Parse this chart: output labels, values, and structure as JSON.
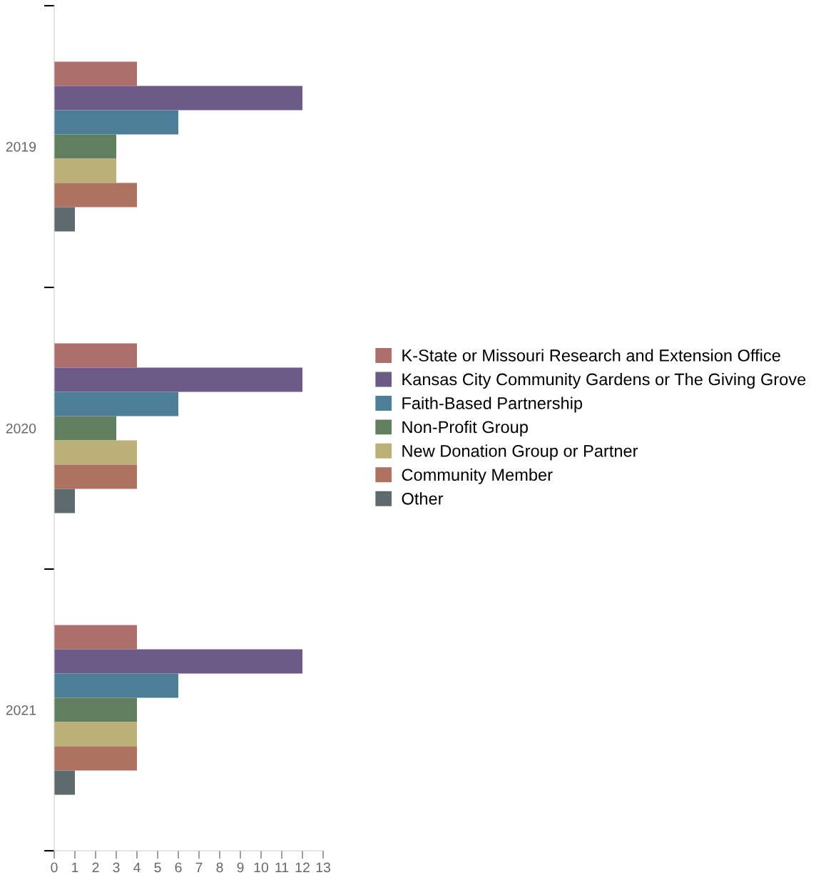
{
  "chart_data": {
    "type": "bar",
    "orientation": "horizontal",
    "categories": [
      "2019",
      "2020",
      "2021"
    ],
    "series": [
      {
        "name": "K-State or Missouri Research and Extension Office",
        "color": "#ad6f6c",
        "values": [
          4,
          4,
          4
        ]
      },
      {
        "name": "Kansas City Community Gardens or The Giving Grove",
        "color": "#6c5a87",
        "values": [
          12,
          12,
          12
        ]
      },
      {
        "name": "Faith-Based Partnership",
        "color": "#4c7f97",
        "values": [
          6,
          6,
          6
        ]
      },
      {
        "name": "Non-Profit Group",
        "color": "#5f7f5e",
        "values": [
          3,
          3,
          4
        ]
      },
      {
        "name": "New Donation Group or Partner",
        "color": "#bbb077",
        "values": [
          3,
          4,
          4
        ]
      },
      {
        "name": "Community Member",
        "color": "#ae7261",
        "values": [
          4,
          4,
          4
        ]
      },
      {
        "name": "Other",
        "color": "#5f6a6e",
        "values": [
          1,
          1,
          1
        ]
      }
    ],
    "xlim": [
      0,
      13
    ],
    "xticks": [
      0,
      1,
      2,
      3,
      4,
      5,
      6,
      7,
      8,
      9,
      10,
      11,
      12,
      13
    ],
    "grid": false,
    "legend": "right"
  }
}
